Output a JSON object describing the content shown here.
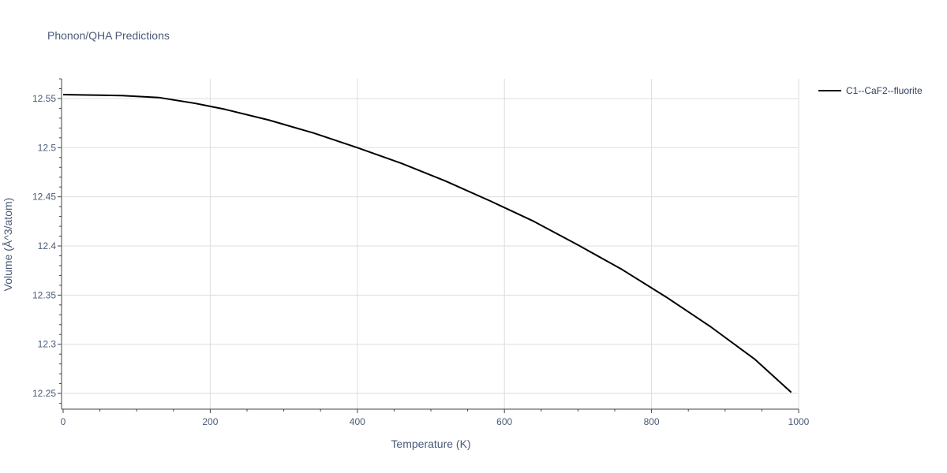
{
  "chart_data": {
    "type": "line",
    "title": "Phonon/QHA Predictions",
    "xlabel": "Temperature (K)",
    "ylabel": "Volume (Å^3/atom)",
    "xlim": [
      0,
      1000
    ],
    "ylim": [
      12.234,
      12.57
    ],
    "x_ticks": [
      0,
      200,
      400,
      600,
      800,
      1000
    ],
    "x_tick_labels": [
      "0",
      "200",
      "400",
      "600",
      "800",
      "1000"
    ],
    "y_ticks": [
      12.25,
      12.3,
      12.35,
      12.4,
      12.45,
      12.5,
      12.55
    ],
    "y_tick_labels": [
      "12.25",
      "12.3",
      "12.35",
      "12.4",
      "12.45",
      "12.5",
      "12.55"
    ],
    "grid": true,
    "legend_position": "top-right",
    "series": [
      {
        "name": "C1--CaF2--fluorite",
        "color": "#000000",
        "x": [
          0,
          40,
          80,
          130,
          180,
          220,
          280,
          340,
          400,
          460,
          520,
          580,
          640,
          700,
          760,
          820,
          880,
          940,
          990
        ],
        "y": [
          12.554,
          12.5535,
          12.553,
          12.551,
          12.545,
          12.539,
          12.528,
          12.515,
          12.5,
          12.484,
          12.466,
          12.446,
          12.425,
          12.401,
          12.376,
          12.348,
          12.318,
          12.285,
          12.251
        ]
      }
    ]
  }
}
